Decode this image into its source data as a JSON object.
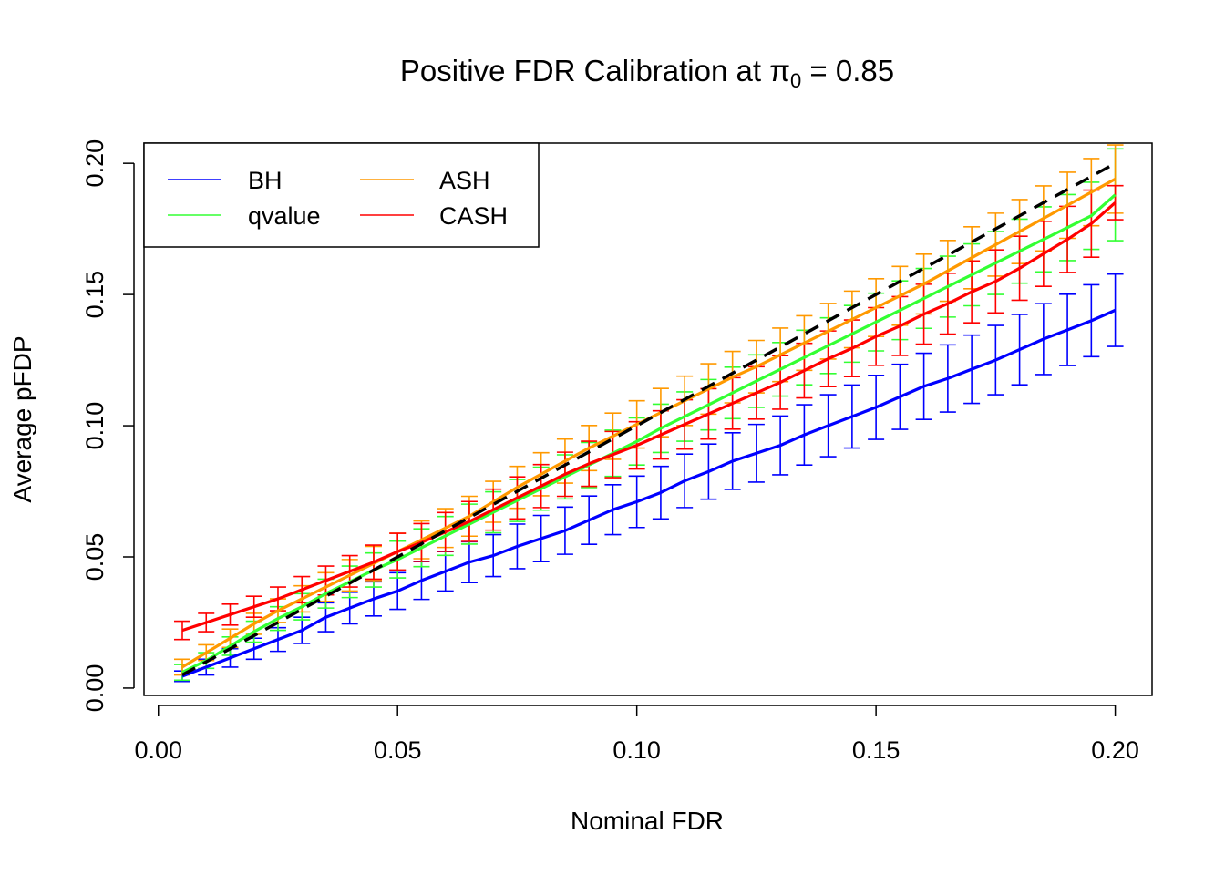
{
  "chart_data": {
    "type": "line",
    "title": {
      "prefix": "Positive FDR Calibration at ",
      "symbol": "π",
      "subscript": "0",
      "suffix": " = 0.85"
    },
    "xlabel": "Nominal FDR",
    "ylabel": "Average pFDP",
    "xlim": [
      -0.003,
      0.2077
    ],
    "ylim": [
      -0.0028,
      0.2077
    ],
    "x_ticks": [
      0.0,
      0.05,
      0.1,
      0.15,
      0.2
    ],
    "x_tick_labels": [
      "0.00",
      "0.05",
      "0.10",
      "0.15",
      "0.20"
    ],
    "y_ticks": [
      0.0,
      0.05,
      0.1,
      0.15,
      0.2
    ],
    "y_tick_labels": [
      "0.00",
      "0.05",
      "0.10",
      "0.15",
      "0.20"
    ],
    "grid": false,
    "legend_position": "top-left",
    "reference_line": {
      "style": "dashed",
      "color": "#000000",
      "x": [
        0.005,
        0.2
      ],
      "y": [
        0.005,
        0.2
      ]
    },
    "x": [
      0.005,
      0.01,
      0.015,
      0.02,
      0.025,
      0.03,
      0.035,
      0.04,
      0.045,
      0.05,
      0.055,
      0.06,
      0.065,
      0.07,
      0.075,
      0.08,
      0.085,
      0.09,
      0.095,
      0.1,
      0.105,
      0.11,
      0.115,
      0.12,
      0.125,
      0.13,
      0.135,
      0.14,
      0.145,
      0.15,
      0.155,
      0.16,
      0.165,
      0.17,
      0.175,
      0.18,
      0.185,
      0.19,
      0.195,
      0.2
    ],
    "series": [
      {
        "name": "BH",
        "color": "#0000ff",
        "values": [
          0.0045,
          0.008,
          0.0115,
          0.015,
          0.0185,
          0.022,
          0.027,
          0.0305,
          0.034,
          0.037,
          0.041,
          0.0445,
          0.048,
          0.0505,
          0.054,
          0.057,
          0.06,
          0.064,
          0.068,
          0.071,
          0.0745,
          0.079,
          0.0825,
          0.0865,
          0.0895,
          0.0925,
          0.0965,
          0.1,
          0.1035,
          0.107,
          0.111,
          0.115,
          0.118,
          0.1215,
          0.125,
          0.129,
          0.133,
          0.1365,
          0.14,
          0.144
        ],
        "err": [
          0.002,
          0.003,
          0.0035,
          0.004,
          0.0045,
          0.005,
          0.0055,
          0.006,
          0.0065,
          0.007,
          0.0072,
          0.0075,
          0.0078,
          0.008,
          0.0085,
          0.0088,
          0.009,
          0.0092,
          0.0095,
          0.0098,
          0.01,
          0.0102,
          0.0105,
          0.0108,
          0.011,
          0.0112,
          0.0115,
          0.0118,
          0.012,
          0.0122,
          0.0124,
          0.0126,
          0.0128,
          0.013,
          0.0132,
          0.0134,
          0.0135,
          0.0136,
          0.0137,
          0.0138
        ]
      },
      {
        "name": "qvalue",
        "color": "#33ff33",
        "values": [
          0.006,
          0.0105,
          0.016,
          0.0215,
          0.0265,
          0.031,
          0.036,
          0.0405,
          0.045,
          0.049,
          0.0535,
          0.058,
          0.0625,
          0.067,
          0.0715,
          0.076,
          0.0805,
          0.085,
          0.0895,
          0.094,
          0.099,
          0.1035,
          0.108,
          0.1125,
          0.117,
          0.1215,
          0.126,
          0.1305,
          0.135,
          0.1395,
          0.144,
          0.1485,
          0.153,
          0.1575,
          0.162,
          0.1665,
          0.171,
          0.1755,
          0.18,
          0.188
        ],
        "err": [
          0.003,
          0.003,
          0.0035,
          0.004,
          0.0045,
          0.005,
          0.0055,
          0.006,
          0.0065,
          0.007,
          0.0072,
          0.0074,
          0.0076,
          0.0078,
          0.008,
          0.0082,
          0.0084,
          0.0086,
          0.0088,
          0.009,
          0.0092,
          0.0094,
          0.0096,
          0.0098,
          0.01,
          0.0102,
          0.0104,
          0.0106,
          0.0108,
          0.011,
          0.0112,
          0.0114,
          0.0116,
          0.0118,
          0.012,
          0.0122,
          0.0124,
          0.0126,
          0.0128,
          0.0175
        ]
      },
      {
        "name": "ASH",
        "color": "#ff9900",
        "values": [
          0.008,
          0.0135,
          0.019,
          0.0245,
          0.0295,
          0.034,
          0.0385,
          0.043,
          0.0475,
          0.052,
          0.0565,
          0.061,
          0.0655,
          0.071,
          0.0765,
          0.0815,
          0.0865,
          0.0915,
          0.096,
          0.1005,
          0.105,
          0.1095,
          0.114,
          0.1185,
          0.1225,
          0.127,
          0.1315,
          0.136,
          0.1405,
          0.145,
          0.1495,
          0.154,
          0.159,
          0.164,
          0.169,
          0.174,
          0.179,
          0.184,
          0.189,
          0.194
        ],
        "err": [
          0.003,
          0.003,
          0.0035,
          0.004,
          0.0045,
          0.005,
          0.0055,
          0.006,
          0.0065,
          0.007,
          0.0072,
          0.0074,
          0.0076,
          0.0078,
          0.008,
          0.0082,
          0.0084,
          0.0086,
          0.0088,
          0.009,
          0.0092,
          0.0094,
          0.0096,
          0.0098,
          0.01,
          0.0102,
          0.0104,
          0.0106,
          0.0108,
          0.011,
          0.0112,
          0.0114,
          0.0116,
          0.0118,
          0.012,
          0.0122,
          0.0124,
          0.0126,
          0.0128,
          0.013
        ]
      },
      {
        "name": "CASH",
        "color": "#ff0000",
        "values": [
          0.022,
          0.025,
          0.028,
          0.031,
          0.034,
          0.0375,
          0.041,
          0.0445,
          0.048,
          0.052,
          0.0555,
          0.0595,
          0.0635,
          0.068,
          0.0725,
          0.077,
          0.0815,
          0.0855,
          0.089,
          0.0925,
          0.0965,
          0.1005,
          0.1045,
          0.1085,
          0.1125,
          0.1165,
          0.121,
          0.1255,
          0.1295,
          0.134,
          0.138,
          0.1425,
          0.1465,
          0.151,
          0.155,
          0.16,
          0.1655,
          0.171,
          0.177,
          0.185
        ],
        "err": [
          0.0035,
          0.0035,
          0.004,
          0.004,
          0.0045,
          0.005,
          0.0055,
          0.006,
          0.0065,
          0.007,
          0.0072,
          0.0074,
          0.0076,
          0.0078,
          0.008,
          0.0082,
          0.0084,
          0.0086,
          0.0088,
          0.009,
          0.0092,
          0.0094,
          0.0096,
          0.0098,
          0.01,
          0.0102,
          0.0104,
          0.0106,
          0.0108,
          0.011,
          0.0112,
          0.0114,
          0.0116,
          0.0118,
          0.012,
          0.0122,
          0.0124,
          0.0126,
          0.0128,
          0.0065
        ]
      }
    ],
    "legend": [
      {
        "label": "BH",
        "color": "#0000ff"
      },
      {
        "label": "qvalue",
        "color": "#33ff33"
      },
      {
        "label": "ASH",
        "color": "#ff9900"
      },
      {
        "label": "CASH",
        "color": "#ff0000"
      }
    ]
  }
}
